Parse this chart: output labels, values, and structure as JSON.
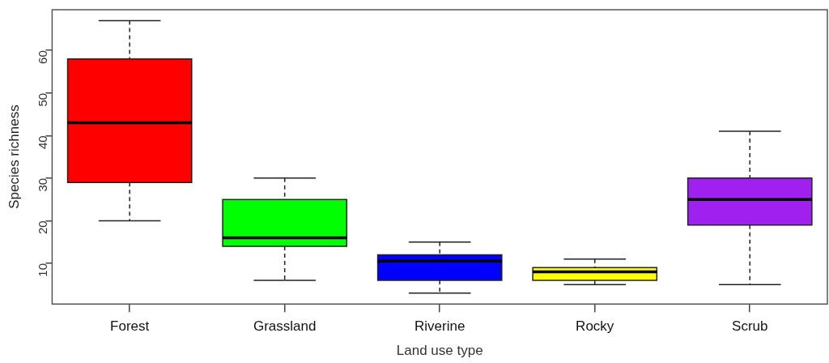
{
  "chart_data": {
    "type": "box",
    "xlabel": "Land use type",
    "ylabel": "Species richness",
    "categories": [
      "Forest",
      "Grassland",
      "Riverine",
      "Rocky",
      "Scrub"
    ],
    "boxes": [
      {
        "low": 20,
        "q1": 29,
        "median": 43,
        "q3": 58,
        "high": 67
      },
      {
        "low": 6,
        "q1": 14,
        "median": 16,
        "q3": 25,
        "high": 30
      },
      {
        "low": 3,
        "q1": 6,
        "median": 10.5,
        "q3": 12,
        "high": 15
      },
      {
        "low": 5,
        "q1": 6,
        "median": 8,
        "q3": 9,
        "high": 11
      },
      {
        "low": 5,
        "q1": 19,
        "median": 25,
        "q3": 30,
        "high": 41
      }
    ],
    "colors": [
      "#ff0000",
      "#00ff00",
      "#0000ff",
      "#ffff00",
      "#a020f0"
    ],
    "ylim": [
      0.44,
      69.56
    ],
    "yticks": [
      10,
      20,
      30,
      40,
      50,
      60
    ],
    "grid": false
  }
}
